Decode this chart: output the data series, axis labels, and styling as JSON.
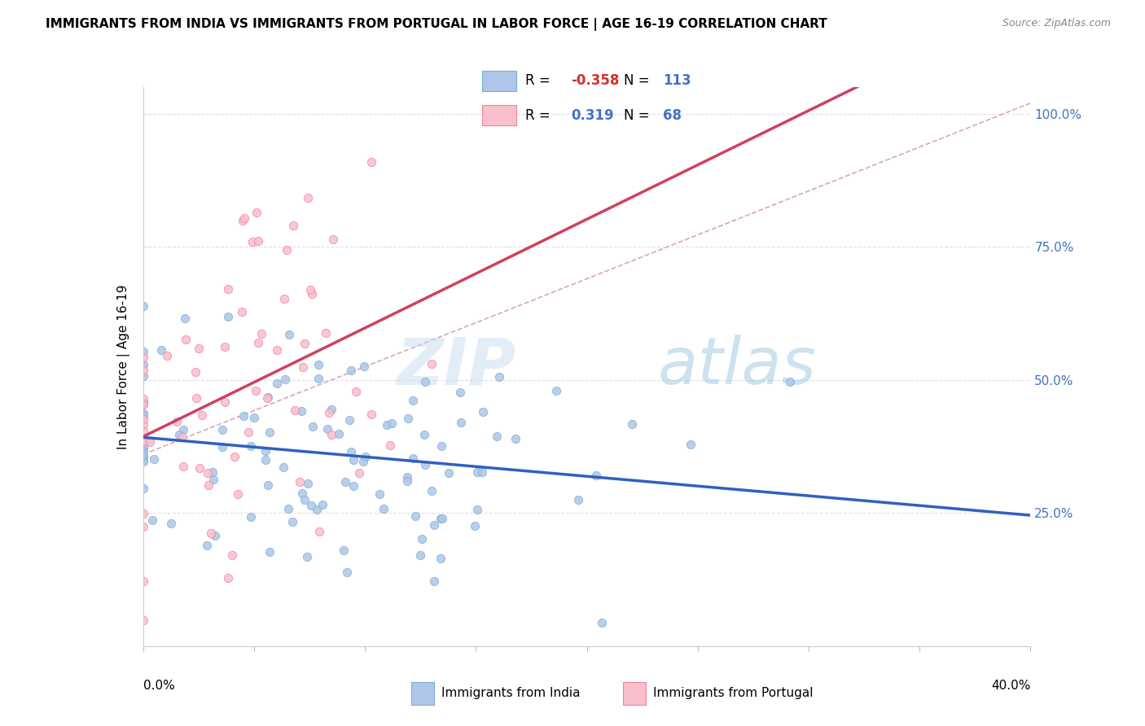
{
  "title": "IMMIGRANTS FROM INDIA VS IMMIGRANTS FROM PORTUGAL IN LABOR FORCE | AGE 16-19 CORRELATION CHART",
  "source": "Source: ZipAtlas.com",
  "ylabel": "In Labor Force | Age 16-19",
  "xmin": 0.0,
  "xmax": 0.4,
  "ymin": 0.0,
  "ymax": 1.05,
  "india_color": "#aec6e8",
  "india_edge": "#7bafd4",
  "portugal_color": "#f9c0cc",
  "portugal_edge": "#f080a0",
  "india_R": -0.358,
  "india_N": 113,
  "portugal_R": 0.319,
  "portugal_N": 68,
  "watermark_zip": "ZIP",
  "watermark_atlas": "atlas",
  "india_trend_color": "#3060c0",
  "portugal_trend_color": "#d04060",
  "ref_line_color": "#d0a0b0",
  "right_tick_color": "#4472c4",
  "grid_color": "#e0e0e0"
}
